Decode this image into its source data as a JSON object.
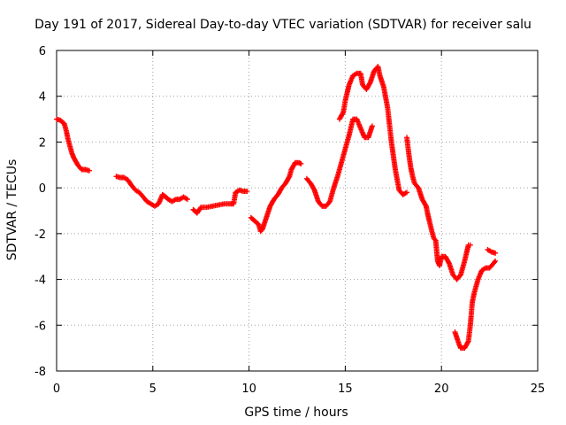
{
  "chart_data": {
    "type": "scatter",
    "title": "Day 191 of 2017, Sidereal Day-to-day VTEC variation (SDTVAR) for receiver salu",
    "xlabel": "GPS time / hours",
    "ylabel": "SDTVAR / TECUs",
    "xlim": [
      0,
      25
    ],
    "ylim": [
      -8,
      6
    ],
    "xticks": [
      "0",
      "5",
      "10",
      "15",
      "20",
      "25"
    ],
    "yticks": [
      "-8",
      "-6",
      "-4",
      "-2",
      "0",
      "2",
      "4",
      "6"
    ],
    "grid": true,
    "marker": "+",
    "color": "#ff0000",
    "series": [
      {
        "segments": [
          [
            [
              0.0,
              3.0
            ],
            [
              0.2,
              2.95
            ],
            [
              0.4,
              2.8
            ],
            [
              0.5,
              2.5
            ],
            [
              0.6,
              2.1
            ],
            [
              0.7,
              1.8
            ],
            [
              0.8,
              1.5
            ],
            [
              0.9,
              1.3
            ],
            [
              1.0,
              1.15
            ],
            [
              1.1,
              1.0
            ],
            [
              1.2,
              0.9
            ],
            [
              1.3,
              0.8
            ],
            [
              1.5,
              0.8
            ],
            [
              1.7,
              0.75
            ]
          ],
          [
            [
              3.1,
              0.5
            ],
            [
              3.3,
              0.45
            ],
            [
              3.5,
              0.45
            ],
            [
              3.7,
              0.35
            ],
            [
              3.9,
              0.1
            ],
            [
              4.1,
              -0.1
            ],
            [
              4.3,
              -0.2
            ],
            [
              4.5,
              -0.4
            ],
            [
              4.7,
              -0.6
            ],
            [
              4.9,
              -0.7
            ],
            [
              5.1,
              -0.8
            ],
            [
              5.3,
              -0.7
            ],
            [
              5.5,
              -0.3
            ],
            [
              5.6,
              -0.35
            ],
            [
              5.8,
              -0.5
            ],
            [
              6.0,
              -0.6
            ],
            [
              6.2,
              -0.5
            ],
            [
              6.4,
              -0.5
            ],
            [
              6.6,
              -0.4
            ],
            [
              6.8,
              -0.5
            ]
          ],
          [
            [
              7.1,
              -0.95
            ],
            [
              7.3,
              -1.1
            ],
            [
              7.5,
              -0.85
            ],
            [
              7.8,
              -0.85
            ],
            [
              8.1,
              -0.8
            ],
            [
              8.4,
              -0.75
            ],
            [
              8.7,
              -0.7
            ],
            [
              9.0,
              -0.7
            ],
            [
              9.2,
              -0.7
            ],
            [
              9.3,
              -0.2
            ],
            [
              9.5,
              -0.1
            ],
            [
              9.7,
              -0.15
            ],
            [
              9.9,
              -0.15
            ]
          ],
          [
            [
              10.1,
              -1.3
            ],
            [
              10.3,
              -1.45
            ],
            [
              10.5,
              -1.6
            ],
            [
              10.6,
              -1.9
            ],
            [
              10.7,
              -1.8
            ],
            [
              10.9,
              -1.3
            ],
            [
              11.1,
              -0.8
            ],
            [
              11.3,
              -0.5
            ],
            [
              11.5,
              -0.3
            ],
            [
              11.7,
              0.0
            ],
            [
              11.9,
              0.2
            ],
            [
              12.1,
              0.5
            ],
            [
              12.2,
              0.8
            ],
            [
              12.4,
              1.1
            ],
            [
              12.6,
              1.1
            ],
            [
              12.7,
              1.05
            ]
          ],
          [
            [
              13.0,
              0.4
            ],
            [
              13.2,
              0.2
            ],
            [
              13.4,
              -0.1
            ],
            [
              13.6,
              -0.6
            ],
            [
              13.8,
              -0.8
            ],
            [
              14.0,
              -0.8
            ],
            [
              14.2,
              -0.6
            ],
            [
              14.4,
              0.0
            ],
            [
              14.6,
              0.5
            ],
            [
              14.8,
              1.1
            ],
            [
              15.0,
              1.7
            ],
            [
              15.2,
              2.3
            ],
            [
              15.4,
              3.0
            ],
            [
              15.6,
              3.0
            ],
            [
              15.8,
              2.6
            ],
            [
              16.0,
              2.2
            ],
            [
              16.2,
              2.2
            ],
            [
              16.4,
              2.7
            ]
          ],
          [
            [
              14.7,
              3.0
            ],
            [
              14.9,
              3.3
            ],
            [
              15.0,
              3.8
            ],
            [
              15.2,
              4.5
            ],
            [
              15.4,
              4.9
            ],
            [
              15.6,
              5.0
            ],
            [
              15.8,
              5.0
            ],
            [
              15.9,
              4.5
            ],
            [
              16.1,
              4.3
            ],
            [
              16.3,
              4.6
            ],
            [
              16.5,
              5.1
            ],
            [
              16.7,
              5.3
            ],
            [
              16.8,
              4.9
            ],
            [
              17.0,
              4.4
            ],
            [
              17.2,
              3.5
            ],
            [
              17.4,
              2.0
            ],
            [
              17.6,
              0.8
            ],
            [
              17.8,
              -0.1
            ],
            [
              18.0,
              -0.3
            ],
            [
              18.2,
              -0.2
            ]
          ],
          [
            [
              18.2,
              2.2
            ],
            [
              18.3,
              1.5
            ],
            [
              18.4,
              0.9
            ],
            [
              18.5,
              0.5
            ],
            [
              18.6,
              0.2
            ],
            [
              18.8,
              0.0
            ],
            [
              19.0,
              -0.5
            ],
            [
              19.2,
              -0.8
            ],
            [
              19.3,
              -1.2
            ],
            [
              19.5,
              -1.9
            ],
            [
              19.6,
              -2.2
            ],
            [
              19.7,
              -2.3
            ],
            [
              19.8,
              -3.2
            ],
            [
              19.9,
              -3.4
            ],
            [
              20.0,
              -3.0
            ],
            [
              20.2,
              -3.0
            ],
            [
              20.4,
              -3.3
            ],
            [
              20.6,
              -3.8
            ],
            [
              20.8,
              -4.0
            ],
            [
              21.0,
              -3.8
            ],
            [
              21.2,
              -3.2
            ],
            [
              21.4,
              -2.5
            ],
            [
              21.5,
              -2.5
            ]
          ],
          [
            [
              20.7,
              -6.3
            ],
            [
              20.9,
              -6.8
            ],
            [
              21.0,
              -7.0
            ],
            [
              21.2,
              -7.0
            ],
            [
              21.4,
              -6.7
            ],
            [
              21.5,
              -6.0
            ],
            [
              21.6,
              -5.0
            ],
            [
              21.7,
              -4.6
            ],
            [
              21.9,
              -4.0
            ],
            [
              22.1,
              -3.6
            ],
            [
              22.3,
              -3.5
            ],
            [
              22.5,
              -3.5
            ],
            [
              22.7,
              -3.3
            ],
            [
              22.8,
              -3.2
            ]
          ],
          [
            [
              22.4,
              -2.7
            ],
            [
              22.6,
              -2.8
            ],
            [
              22.8,
              -2.85
            ]
          ]
        ]
      }
    ]
  }
}
